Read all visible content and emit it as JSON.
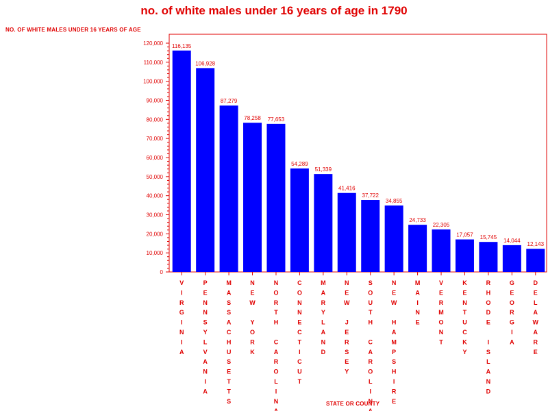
{
  "chart_data": {
    "type": "bar",
    "title": "no. of white males under 16 years of age in 1790",
    "ylabel": "NO. OF WHITE MALES UNDER 16 YEARS OF AGE",
    "xlabel": "STATE OR COUNTY",
    "ylim": [
      0,
      120000
    ],
    "yticks": [
      0,
      10000,
      20000,
      30000,
      40000,
      50000,
      60000,
      70000,
      80000,
      90000,
      100000,
      110000,
      120000
    ],
    "ytick_labels": [
      "0",
      "10,000",
      "20,000",
      "30,000",
      "40,000",
      "50,000",
      "60,000",
      "70,000",
      "80,000",
      "90,000",
      "100,000",
      "110,000",
      "120,000"
    ],
    "categories": [
      "VIRGINIA",
      "PENNSYLVANIA",
      "MASSACHUSETTS",
      "NEW YORK",
      "NORTH CAROLINA",
      "CONNECTICUT",
      "MARYLAND",
      "NEW JERSEY",
      "SOUTH CAROLINA",
      "NEW HAMPSHIRE",
      "MAINE",
      "VERMONT",
      "KENTUCKY",
      "RHODE ISLAND",
      "GEORGIA",
      "DELAWARE"
    ],
    "values": [
      116135,
      106928,
      87279,
      78258,
      77653,
      54289,
      51339,
      41416,
      37722,
      34855,
      24733,
      22305,
      17057,
      15745,
      14044,
      12143
    ],
    "value_labels": [
      "116,135",
      "106,928",
      "87,279",
      "78,258",
      "77,653",
      "54,289",
      "51,339",
      "41,416",
      "37,722",
      "34,855",
      "24,733",
      "22,305",
      "17,057",
      "15,745",
      "14,044",
      "12,143"
    ],
    "colors": {
      "bar": "#0000ff",
      "text": "#e00000",
      "axis": "#e00000"
    },
    "grid": false,
    "legend": "none"
  }
}
